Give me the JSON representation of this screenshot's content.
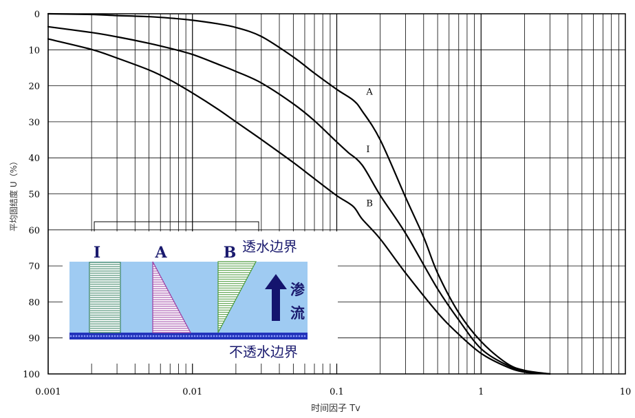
{
  "chart_data": {
    "type": "line",
    "x_scale": "log",
    "xlim": [
      0.001,
      10
    ],
    "ylim": [
      0,
      100
    ],
    "y_inverted": true,
    "grid": true,
    "xlabel": "时间因子 Tv",
    "ylabel": "平均固结度 U（%）",
    "x_tick_labels": [
      "0.001",
      "0.01",
      "0.1",
      "1",
      "10"
    ],
    "x_ticks": [
      0.001,
      0.01,
      0.1,
      1,
      10
    ],
    "y_ticks": [
      0,
      10,
      20,
      30,
      40,
      50,
      60,
      70,
      80,
      90,
      100
    ],
    "y_tick_labels": [
      "0",
      "10",
      "20",
      "30",
      "40",
      "50",
      "60",
      "70",
      "80",
      "90",
      "100"
    ],
    "series": [
      {
        "name": "A",
        "x": [
          0.001,
          0.002,
          0.003,
          0.005,
          0.007,
          0.01,
          0.015,
          0.02,
          0.03,
          0.05,
          0.07,
          0.1,
          0.13,
          0.15,
          0.2,
          0.3,
          0.4,
          0.5,
          0.7,
          1.0,
          1.5,
          2.0,
          3.0
        ],
        "y": [
          0,
          0.2,
          0.5,
          0.8,
          1.2,
          1.8,
          2.8,
          3.8,
          6.3,
          12,
          16.5,
          21,
          24,
          27,
          35,
          51,
          62,
          72,
          83,
          91,
          97,
          99,
          100
        ]
      },
      {
        "name": "I",
        "x": [
          0.001,
          0.002,
          0.003,
          0.005,
          0.007,
          0.01,
          0.015,
          0.02,
          0.03,
          0.05,
          0.07,
          0.1,
          0.12,
          0.15,
          0.2,
          0.3,
          0.5,
          0.7,
          1.0,
          1.5,
          2.0,
          3.0
        ],
        "y": [
          3.6,
          5.2,
          6.4,
          8.2,
          9.6,
          11.3,
          14,
          16,
          19.2,
          25,
          29.7,
          35.6,
          38.5,
          42,
          50.4,
          61,
          76.4,
          85,
          93,
          97.5,
          99.2,
          100
        ]
      },
      {
        "name": "B",
        "x": [
          0.001,
          0.002,
          0.003,
          0.005,
          0.007,
          0.01,
          0.015,
          0.02,
          0.03,
          0.05,
          0.07,
          0.1,
          0.13,
          0.15,
          0.2,
          0.3,
          0.5,
          0.7,
          1.0,
          1.5,
          2.0,
          3.0
        ],
        "y": [
          7,
          9.9,
          12.3,
          15.6,
          18.4,
          22,
          26.5,
          30,
          34.9,
          41.3,
          45.8,
          50.5,
          53.5,
          57,
          62.5,
          72,
          83,
          89,
          94.3,
          98,
          99.5,
          100
        ]
      }
    ],
    "curve_labels": [
      {
        "text": "A",
        "x": 0.16,
        "y": 21.5
      },
      {
        "text": "I",
        "x": 0.16,
        "y": 37.5
      },
      {
        "text": "B",
        "x": 0.16,
        "y": 52.5
      }
    ],
    "inset": {
      "type_labels": [
        "I",
        "A",
        "B"
      ],
      "top_boundary": "透水边界",
      "bottom_boundary": "不透水边界",
      "flow_chars": [
        "渗",
        "流"
      ],
      "colors": {
        "background": "#9fcbf2",
        "bar_I": "#2e7d5b",
        "triangle_A": "#9b3fa3",
        "triangle_B": "#4a9a3a",
        "base": "#2233bb",
        "arrow": "#14146e"
      }
    }
  }
}
